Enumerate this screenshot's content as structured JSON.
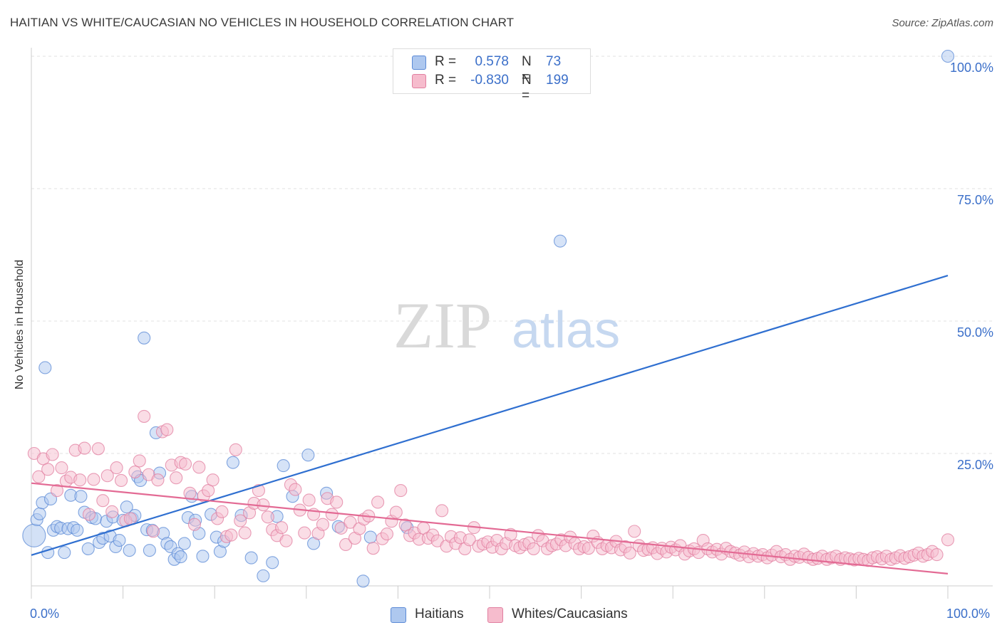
{
  "title": "HAITIAN VS WHITE/CAUCASIAN NO VEHICLES IN HOUSEHOLD CORRELATION CHART",
  "source": "Source: ZipAtlas.com",
  "watermark": {
    "zip": "ZIP",
    "atlas": "atlas"
  },
  "legend": {
    "r_label": "R =",
    "n_label": "N =",
    "rows": [
      {
        "r": "0.578",
        "n": "73",
        "fill": "#aec8ef",
        "stroke": "#5b8ad6"
      },
      {
        "r": "-0.830",
        "n": "199",
        "fill": "#f6bccd",
        "stroke": "#e17fa0"
      }
    ]
  },
  "chart_data": {
    "type": "scatter",
    "ylabel": "No Vehicles in Household",
    "xlim": [
      0,
      100
    ],
    "ylim": [
      0,
      100
    ],
    "x_ticks": [
      "0.0%",
      "100.0%"
    ],
    "y_ticks": [
      {
        "value": 100,
        "label": "100.0%"
      },
      {
        "value": 75,
        "label": "75.0%"
      },
      {
        "value": 50,
        "label": "50.0%"
      },
      {
        "value": 25,
        "label": "25.0%"
      }
    ],
    "grid": true,
    "legend_position": "bottom",
    "series": [
      {
        "name": "Haitians",
        "color": "#5b8ad6",
        "fill": "#aec8ef",
        "trend": {
          "x": [
            0,
            100
          ],
          "y": [
            5.8,
            58.6
          ]
        },
        "points": [
          [
            0.3,
            9.5
          ],
          [
            0.6,
            12.5
          ],
          [
            0.9,
            13.6
          ],
          [
            1.2,
            15.7
          ],
          [
            1.5,
            41.2
          ],
          [
            1.8,
            6.3
          ],
          [
            2.1,
            16.4
          ],
          [
            2.4,
            10.5
          ],
          [
            2.8,
            11.2
          ],
          [
            3.2,
            10.9
          ],
          [
            3.6,
            6.3
          ],
          [
            4.0,
            10.8
          ],
          [
            4.3,
            17.1
          ],
          [
            4.6,
            11.0
          ],
          [
            5.0,
            10.5
          ],
          [
            5.4,
            16.9
          ],
          [
            5.8,
            13.9
          ],
          [
            6.2,
            7.0
          ],
          [
            6.6,
            12.9
          ],
          [
            7.0,
            12.7
          ],
          [
            7.4,
            8.2
          ],
          [
            7.8,
            9.0
          ],
          [
            8.2,
            12.2
          ],
          [
            8.6,
            9.4
          ],
          [
            8.9,
            13.0
          ],
          [
            9.2,
            7.4
          ],
          [
            9.6,
            8.6
          ],
          [
            10.0,
            12.4
          ],
          [
            10.4,
            14.9
          ],
          [
            10.7,
            6.7
          ],
          [
            11.0,
            12.7
          ],
          [
            11.3,
            13.3
          ],
          [
            11.6,
            20.6
          ],
          [
            11.9,
            19.9
          ],
          [
            12.3,
            46.8
          ],
          [
            12.6,
            10.6
          ],
          [
            12.9,
            6.7
          ],
          [
            13.2,
            10.5
          ],
          [
            13.6,
            28.9
          ],
          [
            14.0,
            21.3
          ],
          [
            14.4,
            9.9
          ],
          [
            14.8,
            8.0
          ],
          [
            15.2,
            7.4
          ],
          [
            15.6,
            5.0
          ],
          [
            16.0,
            6.1
          ],
          [
            16.3,
            5.5
          ],
          [
            16.7,
            8.0
          ],
          [
            17.1,
            12.9
          ],
          [
            17.5,
            16.9
          ],
          [
            17.9,
            12.4
          ],
          [
            18.3,
            9.9
          ],
          [
            18.7,
            5.6
          ],
          [
            19.6,
            13.5
          ],
          [
            20.2,
            9.2
          ],
          [
            20.6,
            6.5
          ],
          [
            21.0,
            8.4
          ],
          [
            22.0,
            23.3
          ],
          [
            22.9,
            13.3
          ],
          [
            24.0,
            5.3
          ],
          [
            25.3,
            1.9
          ],
          [
            26.3,
            4.4
          ],
          [
            26.8,
            13.1
          ],
          [
            27.5,
            22.7
          ],
          [
            28.5,
            16.9
          ],
          [
            30.2,
            24.7
          ],
          [
            30.8,
            8.0
          ],
          [
            32.2,
            17.5
          ],
          [
            33.5,
            11.2
          ],
          [
            36.2,
            0.9
          ],
          [
            37.0,
            9.2
          ],
          [
            41.0,
            11.0
          ],
          [
            57.7,
            65.1
          ],
          [
            100.0,
            100.0
          ]
        ]
      },
      {
        "name": "Whites/Caucasians",
        "color": "#e17fa0",
        "fill": "#f6bccd",
        "trend": {
          "x": [
            0,
            100
          ],
          "y": [
            19.4,
            2.3
          ]
        },
        "points": [
          [
            0.3,
            25.0
          ],
          [
            0.8,
            20.6
          ],
          [
            1.3,
            24.0
          ],
          [
            1.8,
            22.0
          ],
          [
            2.3,
            24.8
          ],
          [
            2.8,
            18.0
          ],
          [
            3.3,
            22.3
          ],
          [
            3.8,
            19.8
          ],
          [
            4.3,
            20.5
          ],
          [
            4.8,
            25.6
          ],
          [
            5.3,
            20.0
          ],
          [
            5.8,
            26.0
          ],
          [
            6.3,
            13.5
          ],
          [
            6.8,
            20.1
          ],
          [
            7.3,
            25.9
          ],
          [
            7.8,
            16.1
          ],
          [
            8.3,
            20.8
          ],
          [
            8.8,
            14.0
          ],
          [
            9.3,
            22.3
          ],
          [
            9.8,
            19.9
          ],
          [
            10.3,
            12.3
          ],
          [
            10.8,
            12.7
          ],
          [
            11.3,
            21.5
          ],
          [
            11.8,
            23.6
          ],
          [
            12.3,
            32.0
          ],
          [
            12.8,
            21.0
          ],
          [
            13.3,
            10.3
          ],
          [
            13.8,
            20.0
          ],
          [
            14.3,
            29.1
          ],
          [
            14.8,
            29.5
          ],
          [
            15.3,
            22.8
          ],
          [
            15.8,
            20.4
          ],
          [
            16.3,
            23.3
          ],
          [
            16.8,
            23.0
          ],
          [
            17.3,
            17.5
          ],
          [
            17.8,
            11.6
          ],
          [
            18.3,
            22.4
          ],
          [
            18.8,
            17.0
          ],
          [
            19.3,
            18.0
          ],
          [
            19.8,
            20.0
          ],
          [
            20.3,
            12.7
          ],
          [
            20.8,
            14.0
          ],
          [
            21.3,
            9.3
          ],
          [
            21.8,
            9.6
          ],
          [
            22.3,
            25.7
          ],
          [
            22.8,
            12.3
          ],
          [
            23.3,
            10.0
          ],
          [
            23.8,
            13.8
          ],
          [
            24.3,
            15.6
          ],
          [
            24.8,
            18.0
          ],
          [
            25.3,
            15.3
          ],
          [
            25.8,
            13.0
          ],
          [
            26.3,
            10.6
          ],
          [
            26.8,
            9.5
          ],
          [
            27.3,
            11.0
          ],
          [
            27.8,
            8.5
          ],
          [
            28.3,
            19.1
          ],
          [
            28.8,
            18.2
          ],
          [
            29.3,
            14.3
          ],
          [
            29.8,
            10.0
          ],
          [
            30.3,
            16.2
          ],
          [
            30.8,
            13.5
          ],
          [
            31.3,
            9.9
          ],
          [
            31.8,
            11.6
          ],
          [
            32.3,
            16.5
          ],
          [
            32.8,
            13.5
          ],
          [
            33.3,
            15.8
          ],
          [
            33.8,
            10.9
          ],
          [
            34.3,
            7.8
          ],
          [
            34.8,
            12.0
          ],
          [
            35.3,
            9.0
          ],
          [
            35.8,
            10.8
          ],
          [
            36.3,
            12.6
          ],
          [
            36.8,
            13.2
          ],
          [
            37.3,
            7.1
          ],
          [
            37.8,
            15.8
          ],
          [
            38.3,
            8.9
          ],
          [
            38.8,
            9.8
          ],
          [
            39.3,
            12.2
          ],
          [
            39.8,
            13.9
          ],
          [
            40.3,
            18.0
          ],
          [
            40.8,
            11.5
          ],
          [
            41.3,
            9.5
          ],
          [
            41.8,
            10.0
          ],
          [
            42.3,
            8.8
          ],
          [
            42.8,
            10.9
          ],
          [
            43.3,
            9.0
          ],
          [
            43.8,
            9.6
          ],
          [
            44.3,
            8.5
          ],
          [
            44.8,
            14.2
          ],
          [
            45.3,
            7.5
          ],
          [
            45.8,
            9.3
          ],
          [
            46.3,
            8.0
          ],
          [
            46.8,
            9.1
          ],
          [
            47.3,
            7.0
          ],
          [
            47.8,
            8.7
          ],
          [
            48.3,
            11.0
          ],
          [
            48.8,
            7.5
          ],
          [
            49.3,
            7.9
          ],
          [
            49.8,
            8.3
          ],
          [
            50.3,
            7.3
          ],
          [
            50.8,
            8.6
          ],
          [
            51.3,
            7.0
          ],
          [
            51.8,
            8.0
          ],
          [
            52.3,
            9.7
          ],
          [
            52.8,
            7.6
          ],
          [
            53.3,
            7.2
          ],
          [
            53.8,
            7.8
          ],
          [
            54.3,
            8.1
          ],
          [
            54.8,
            7.0
          ],
          [
            55.3,
            9.5
          ],
          [
            55.8,
            8.5
          ],
          [
            56.3,
            7.0
          ],
          [
            56.8,
            7.6
          ],
          [
            57.3,
            7.9
          ],
          [
            57.8,
            8.7
          ],
          [
            58.3,
            7.6
          ],
          [
            58.8,
            9.2
          ],
          [
            59.3,
            8.0
          ],
          [
            59.8,
            7.0
          ],
          [
            60.3,
            7.4
          ],
          [
            60.8,
            7.1
          ],
          [
            61.3,
            9.4
          ],
          [
            61.8,
            8.2
          ],
          [
            62.3,
            7.0
          ],
          [
            62.8,
            7.6
          ],
          [
            63.3,
            7.2
          ],
          [
            63.8,
            8.4
          ],
          [
            64.3,
            6.8
          ],
          [
            64.8,
            7.4
          ],
          [
            65.3,
            6.2
          ],
          [
            65.8,
            10.3
          ],
          [
            66.3,
            7.6
          ],
          [
            66.8,
            6.7
          ],
          [
            67.3,
            6.9
          ],
          [
            67.8,
            7.2
          ],
          [
            68.3,
            6.1
          ],
          [
            68.8,
            7.1
          ],
          [
            69.3,
            6.4
          ],
          [
            69.8,
            7.3
          ],
          [
            70.3,
            6.8
          ],
          [
            70.8,
            7.6
          ],
          [
            71.3,
            6.0
          ],
          [
            71.8,
            6.6
          ],
          [
            72.3,
            7.0
          ],
          [
            72.8,
            6.3
          ],
          [
            73.3,
            8.6
          ],
          [
            73.8,
            7.0
          ],
          [
            74.3,
            6.4
          ],
          [
            74.8,
            6.9
          ],
          [
            75.3,
            6.0
          ],
          [
            75.8,
            7.1
          ],
          [
            76.3,
            6.5
          ],
          [
            76.8,
            6.2
          ],
          [
            77.3,
            5.8
          ],
          [
            77.8,
            6.4
          ],
          [
            78.3,
            5.5
          ],
          [
            78.8,
            6.1
          ],
          [
            79.3,
            5.6
          ],
          [
            79.8,
            5.9
          ],
          [
            80.3,
            5.3
          ],
          [
            80.8,
            5.8
          ],
          [
            81.3,
            6.5
          ],
          [
            81.8,
            5.5
          ],
          [
            82.3,
            5.9
          ],
          [
            82.8,
            5.0
          ],
          [
            83.3,
            5.6
          ],
          [
            83.8,
            5.4
          ],
          [
            84.3,
            6.0
          ],
          [
            84.8,
            5.4
          ],
          [
            85.3,
            5.0
          ],
          [
            85.8,
            5.2
          ],
          [
            86.3,
            5.6
          ],
          [
            86.8,
            5.0
          ],
          [
            87.3,
            5.3
          ],
          [
            87.8,
            5.6
          ],
          [
            88.3,
            5.0
          ],
          [
            88.8,
            5.3
          ],
          [
            89.3,
            5.1
          ],
          [
            89.8,
            4.9
          ],
          [
            90.3,
            5.2
          ],
          [
            90.8,
            5.0
          ],
          [
            91.3,
            4.8
          ],
          [
            91.8,
            5.3
          ],
          [
            92.3,
            5.5
          ],
          [
            92.8,
            5.1
          ],
          [
            93.3,
            5.6
          ],
          [
            93.8,
            5.0
          ],
          [
            94.3,
            5.3
          ],
          [
            94.8,
            5.7
          ],
          [
            95.3,
            5.2
          ],
          [
            95.8,
            5.5
          ],
          [
            96.3,
            5.8
          ],
          [
            96.8,
            6.2
          ],
          [
            97.3,
            5.6
          ],
          [
            97.8,
            5.9
          ],
          [
            98.3,
            6.5
          ],
          [
            98.8,
            5.9
          ],
          [
            100.0,
            8.7
          ]
        ]
      }
    ]
  }
}
